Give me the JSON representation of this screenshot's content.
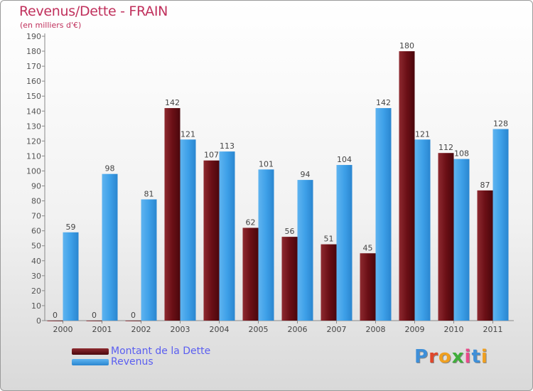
{
  "chart_data": {
    "type": "bar",
    "title": "Revenus/Dette - FRAIN",
    "subtitle": "(en milliers d'€)",
    "categories": [
      "2000",
      "2001",
      "2002",
      "2003",
      "2004",
      "2005",
      "2006",
      "2007",
      "2008",
      "2009",
      "2010",
      "2011"
    ],
    "series": [
      {
        "name": "Montant de la Dette",
        "color": "#6b0f16",
        "values": [
          0,
          0,
          0,
          142,
          107,
          62,
          56,
          51,
          45,
          180,
          112,
          87
        ]
      },
      {
        "name": "Revenus",
        "color": "#3ea0e8",
        "values": [
          59,
          98,
          81,
          121,
          113,
          101,
          94,
          104,
          142,
          121,
          108,
          128
        ]
      }
    ],
    "ylim": [
      0,
      190
    ],
    "ytick_step": 10,
    "grid": false,
    "legend_position": "bottom-left"
  },
  "logo": {
    "text": "Proxiti"
  }
}
